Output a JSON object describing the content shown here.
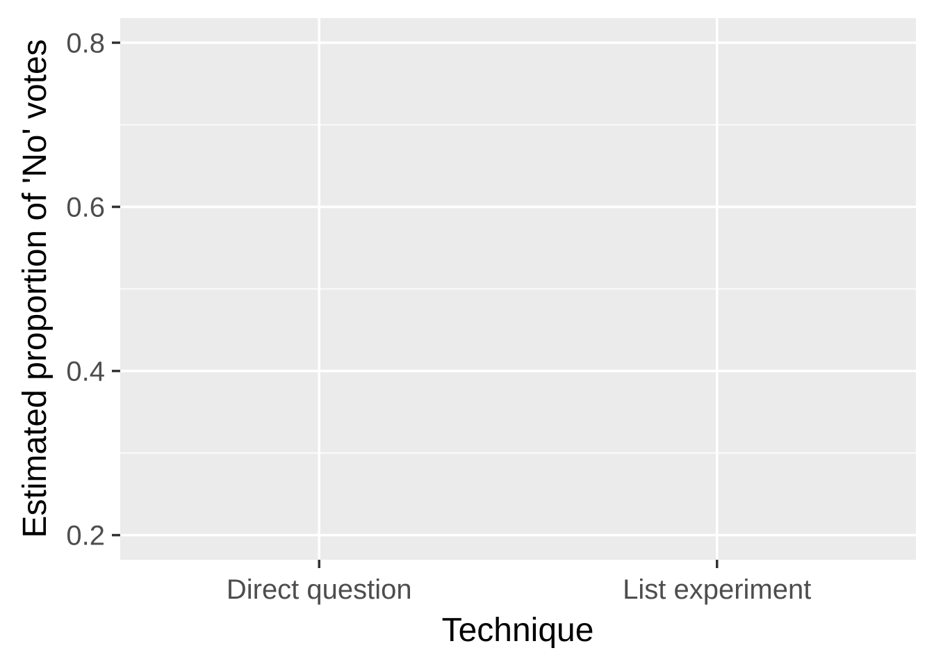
{
  "chart_data": {
    "type": "scatter",
    "title": "",
    "xlabel": "Technique",
    "ylabel": "Estimated proportion of 'No' votes",
    "categories": [
      "Direct question",
      "List experiment"
    ],
    "series": [],
    "ylim": [
      0.17,
      0.83
    ],
    "y_ticks": [
      0.2,
      0.4,
      0.6,
      0.8
    ],
    "y_tick_labels": [
      "0.2",
      "0.4",
      "0.6",
      "0.8"
    ],
    "y_minor_ticks": [
      0.3,
      0.5,
      0.7
    ],
    "grid": true,
    "legend": "none",
    "colors": {
      "panel_background": "#ebebeb",
      "grid": "#ffffff",
      "tick": "#333333",
      "tick_label": "#4d4d4d",
      "axis_title": "#000000"
    }
  }
}
